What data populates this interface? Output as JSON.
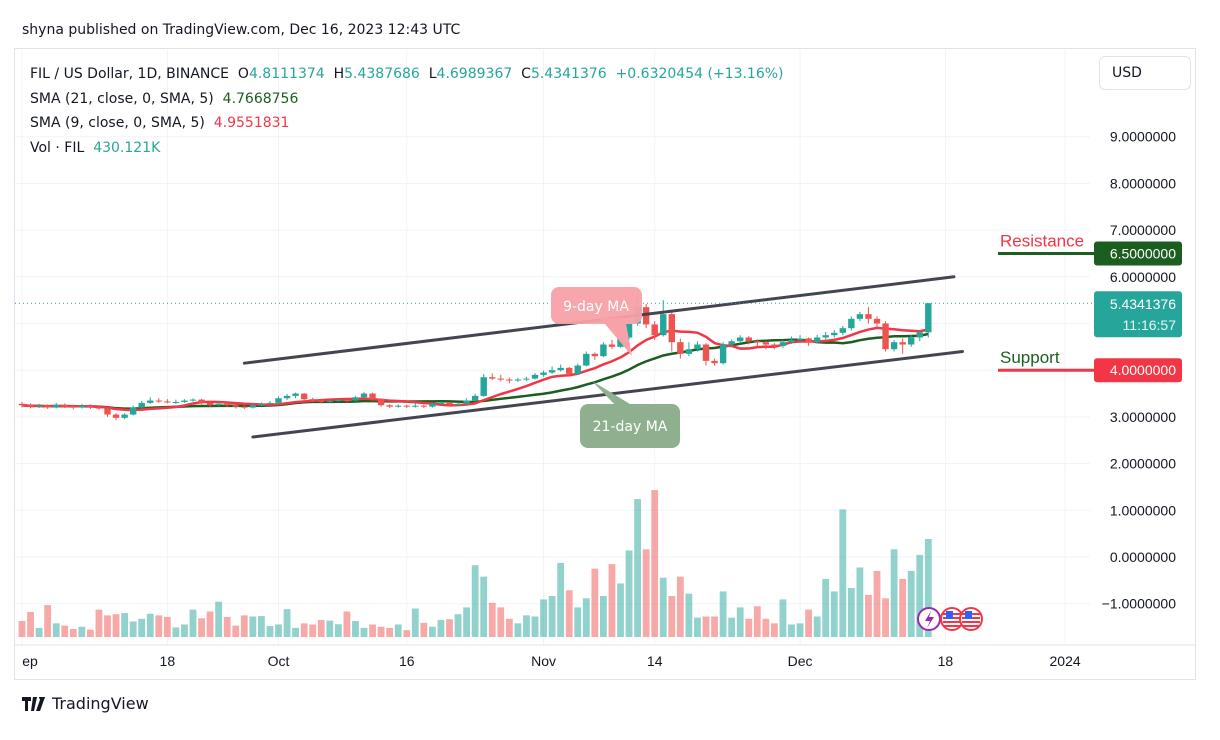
{
  "header": {
    "published": "shyna published on TradingView.com, Dec 16, 2023 12:43 UTC"
  },
  "legend": {
    "symbol": "FIL / US Dollar, 1D, BINANCE",
    "o_label": "O",
    "o": "4.8111374",
    "h_label": "H",
    "h": "5.4387686",
    "l_label": "L",
    "l": "4.6989367",
    "c_label": "C",
    "c": "5.4341376",
    "change": "+0.6320454 (+13.16%)",
    "sma21_label": "SMA (21, close, 0, SMA, 5)",
    "sma21": "4.7668756",
    "sma9_label": "SMA (9, close, 0, SMA, 5)",
    "sma9": "4.9551831",
    "vol_label": "Vol · FIL",
    "vol": "430.121K"
  },
  "currency_button": "USD",
  "brand": "TradingView",
  "colors": {
    "up": "#26a69a",
    "down": "#ef5350",
    "sma21": "#1b5e20",
    "sma9": "#f23645",
    "resistance": "#1b5e20",
    "support": "#f23645",
    "trendline": "#434651"
  },
  "chart_data": {
    "type": "candlestick",
    "price_axis": {
      "ticks": [
        9,
        8,
        7,
        6,
        4,
        3,
        2,
        1,
        0,
        -1
      ],
      "labels": [
        "9.0000000",
        "8.0000000",
        "7.0000000",
        "6.0000000",
        "4.0000000",
        "3.0000000",
        "2.0000000",
        "1.0000000",
        "0.0000000",
        "−1.0000000"
      ]
    },
    "time_axis": {
      "labels": [
        "ep",
        "18",
        "Oct",
        "16",
        "Nov",
        "14",
        "Dec",
        "18",
        "2024"
      ],
      "dates": [
        "2023-09-01",
        "2023-09-18",
        "2023-10-01",
        "2023-10-16",
        "2023-11-01",
        "2023-11-14",
        "2023-12-01",
        "2023-12-18",
        "2024-01-01"
      ]
    },
    "last_price": {
      "label": "5.4341376",
      "countdown": "11:16:57",
      "value": 5.4341376
    },
    "resistance": {
      "label": "Resistance",
      "value": 6.5,
      "tag": "6.5000000"
    },
    "support": {
      "label": "Support",
      "value": 4.0,
      "tag": "4.0000000"
    },
    "annotations": [
      {
        "text": "9-day MA",
        "color": "#f7a1a8"
      },
      {
        "text": "21-day MA",
        "color": "#8fb08f"
      }
    ],
    "trendlines": [
      {
        "from": [
          "2023-09-27",
          4.15
        ],
        "to": [
          "2023-12-19",
          6.0
        ]
      },
      {
        "from": [
          "2023-09-28",
          2.57
        ],
        "to": [
          "2023-12-20",
          4.4
        ]
      }
    ],
    "sma_periods": [
      9,
      21
    ],
    "candles_columns": [
      "date",
      "open",
      "high",
      "low",
      "close",
      "volume_k"
    ],
    "candles": [
      [
        "2023-09-01",
        3.28,
        3.32,
        3.2,
        3.25,
        70
      ],
      [
        "2023-09-02",
        3.25,
        3.29,
        3.18,
        3.22,
        110
      ],
      [
        "2023-09-03",
        3.22,
        3.28,
        3.19,
        3.24,
        40
      ],
      [
        "2023-09-04",
        3.24,
        3.27,
        3.17,
        3.2,
        140
      ],
      [
        "2023-09-05",
        3.2,
        3.3,
        3.18,
        3.26,
        60
      ],
      [
        "2023-09-06",
        3.26,
        3.29,
        3.19,
        3.22,
        50
      ],
      [
        "2023-09-07",
        3.22,
        3.26,
        3.16,
        3.2,
        35
      ],
      [
        "2023-09-08",
        3.2,
        3.28,
        3.18,
        3.24,
        45
      ],
      [
        "2023-09-09",
        3.24,
        3.27,
        3.17,
        3.2,
        32
      ],
      [
        "2023-09-10",
        3.2,
        3.24,
        3.15,
        3.18,
        120
      ],
      [
        "2023-09-11",
        3.18,
        3.2,
        3.0,
        3.05,
        95
      ],
      [
        "2023-09-12",
        3.05,
        3.08,
        2.93,
        2.98,
        100
      ],
      [
        "2023-09-13",
        2.98,
        3.08,
        2.95,
        3.05,
        105
      ],
      [
        "2023-09-14",
        3.05,
        3.24,
        3.03,
        3.2,
        68
      ],
      [
        "2023-09-15",
        3.2,
        3.34,
        3.18,
        3.3,
        80
      ],
      [
        "2023-09-16",
        3.3,
        3.42,
        3.28,
        3.35,
        102
      ],
      [
        "2023-09-17",
        3.35,
        3.4,
        3.3,
        3.33,
        95
      ],
      [
        "2023-09-18",
        3.33,
        3.38,
        3.29,
        3.32,
        88
      ],
      [
        "2023-09-19",
        3.32,
        3.37,
        3.28,
        3.32,
        42
      ],
      [
        "2023-09-20",
        3.32,
        3.38,
        3.3,
        3.35,
        55
      ],
      [
        "2023-09-21",
        3.35,
        3.4,
        3.33,
        3.37,
        120
      ],
      [
        "2023-09-22",
        3.37,
        3.39,
        3.27,
        3.3,
        82
      ],
      [
        "2023-09-23",
        3.3,
        3.33,
        3.22,
        3.25,
        112
      ],
      [
        "2023-09-24",
        3.25,
        3.31,
        3.23,
        3.28,
        155
      ],
      [
        "2023-09-25",
        3.28,
        3.3,
        3.21,
        3.25,
        88
      ],
      [
        "2023-09-26",
        3.25,
        3.28,
        3.18,
        3.22,
        50
      ],
      [
        "2023-09-27",
        3.22,
        3.25,
        3.17,
        3.2,
        95
      ],
      [
        "2023-09-28",
        3.2,
        3.29,
        3.18,
        3.25,
        90
      ],
      [
        "2023-09-29",
        3.25,
        3.31,
        3.23,
        3.28,
        92
      ],
      [
        "2023-09-30",
        3.28,
        3.34,
        3.26,
        3.3,
        48
      ],
      [
        "2023-10-01",
        3.3,
        3.44,
        3.28,
        3.4,
        55
      ],
      [
        "2023-10-02",
        3.4,
        3.49,
        3.36,
        3.45,
        122
      ],
      [
        "2023-10-03",
        3.45,
        3.52,
        3.4,
        3.5,
        40
      ],
      [
        "2023-10-04",
        3.5,
        3.51,
        3.35,
        3.38,
        60
      ],
      [
        "2023-10-05",
        3.38,
        3.41,
        3.32,
        3.35,
        55
      ],
      [
        "2023-10-06",
        3.35,
        3.38,
        3.29,
        3.32,
        75
      ],
      [
        "2023-10-07",
        3.32,
        3.37,
        3.3,
        3.34,
        72
      ],
      [
        "2023-10-08",
        3.34,
        3.39,
        3.32,
        3.36,
        56
      ],
      [
        "2023-10-09",
        3.36,
        3.38,
        3.31,
        3.35,
        112
      ],
      [
        "2023-10-10",
        3.35,
        3.45,
        3.33,
        3.42,
        70
      ],
      [
        "2023-10-11",
        3.42,
        3.53,
        3.4,
        3.5,
        40
      ],
      [
        "2023-10-12",
        3.5,
        3.52,
        3.35,
        3.38,
        55
      ],
      [
        "2023-10-13",
        3.38,
        3.4,
        3.22,
        3.25,
        45
      ],
      [
        "2023-10-14",
        3.25,
        3.27,
        3.19,
        3.22,
        40
      ],
      [
        "2023-10-15",
        3.22,
        3.27,
        3.2,
        3.24,
        55
      ],
      [
        "2023-10-16",
        3.24,
        3.26,
        3.19,
        3.22,
        30
      ],
      [
        "2023-10-17",
        3.22,
        3.3,
        3.2,
        3.24,
        125
      ],
      [
        "2023-10-18",
        3.24,
        3.26,
        3.19,
        3.22,
        62
      ],
      [
        "2023-10-19",
        3.22,
        3.31,
        3.2,
        3.28,
        45
      ],
      [
        "2023-10-20",
        3.28,
        3.33,
        3.25,
        3.3,
        75
      ],
      [
        "2023-10-21",
        3.3,
        3.32,
        3.23,
        3.26,
        78
      ],
      [
        "2023-10-22",
        3.26,
        3.31,
        3.24,
        3.28,
        100
      ],
      [
        "2023-10-23",
        3.28,
        3.4,
        3.26,
        3.35,
        130
      ],
      [
        "2023-10-24",
        3.35,
        3.5,
        3.33,
        3.45,
        315
      ],
      [
        "2023-10-25",
        3.45,
        3.92,
        3.43,
        3.85,
        265
      ],
      [
        "2023-10-26",
        3.85,
        3.93,
        3.79,
        3.82,
        150
      ],
      [
        "2023-10-27",
        3.82,
        3.9,
        3.76,
        3.8,
        130
      ],
      [
        "2023-10-28",
        3.8,
        3.84,
        3.72,
        3.78,
        80
      ],
      [
        "2023-10-29",
        3.78,
        3.84,
        3.75,
        3.8,
        60
      ],
      [
        "2023-10-30",
        3.8,
        3.86,
        3.77,
        3.82,
        95
      ],
      [
        "2023-10-31",
        3.82,
        3.94,
        3.8,
        3.9,
        90
      ],
      [
        "2023-11-01",
        3.9,
        3.99,
        3.86,
        3.95,
        165
      ],
      [
        "2023-11-02",
        3.95,
        4.08,
        3.92,
        4.0,
        180
      ],
      [
        "2023-11-03",
        4.0,
        4.12,
        3.97,
        4.05,
        325
      ],
      [
        "2023-11-04",
        4.05,
        4.07,
        3.88,
        3.92,
        205
      ],
      [
        "2023-11-05",
        3.92,
        4.14,
        3.9,
        4.1,
        130
      ],
      [
        "2023-11-06",
        4.1,
        4.4,
        4.08,
        4.35,
        170
      ],
      [
        "2023-11-07",
        4.35,
        4.38,
        4.22,
        4.3,
        300
      ],
      [
        "2023-11-08",
        4.3,
        4.6,
        4.28,
        4.55,
        180
      ],
      [
        "2023-11-09",
        4.55,
        4.65,
        4.45,
        4.5,
        320
      ],
      [
        "2023-11-10",
        4.5,
        4.8,
        4.48,
        4.7,
        235
      ],
      [
        "2023-11-11",
        4.7,
        5.08,
        4.66,
        5.0,
        380
      ],
      [
        "2023-11-12",
        5.0,
        5.62,
        4.95,
        5.35,
        605
      ],
      [
        "2023-11-13",
        5.35,
        5.42,
        4.9,
        4.98,
        385
      ],
      [
        "2023-11-14",
        4.98,
        5.05,
        4.65,
        4.75,
        645
      ],
      [
        "2023-11-15",
        4.75,
        5.5,
        4.72,
        5.2,
        260
      ],
      [
        "2023-11-16",
        5.2,
        5.25,
        4.4,
        4.6,
        180
      ],
      [
        "2023-11-17",
        4.6,
        4.68,
        4.25,
        4.35,
        265
      ],
      [
        "2023-11-18",
        4.35,
        4.6,
        4.3,
        4.45,
        190
      ],
      [
        "2023-11-19",
        4.45,
        4.62,
        4.4,
        4.55,
        85
      ],
      [
        "2023-11-20",
        4.55,
        4.58,
        4.1,
        4.2,
        90
      ],
      [
        "2023-11-21",
        4.2,
        4.25,
        4.1,
        4.15,
        90
      ],
      [
        "2023-11-22",
        4.15,
        4.6,
        4.12,
        4.55,
        200
      ],
      [
        "2023-11-23",
        4.55,
        4.66,
        4.5,
        4.62,
        85
      ],
      [
        "2023-11-24",
        4.62,
        4.75,
        4.58,
        4.7,
        130
      ],
      [
        "2023-11-25",
        4.7,
        4.73,
        4.55,
        4.62,
        80
      ],
      [
        "2023-11-26",
        4.62,
        4.66,
        4.48,
        4.6,
        135
      ],
      [
        "2023-11-27",
        4.6,
        4.63,
        4.45,
        4.55,
        80
      ],
      [
        "2023-11-28",
        4.55,
        4.58,
        4.45,
        4.52,
        60
      ],
      [
        "2023-11-29",
        4.52,
        4.65,
        4.48,
        4.6,
        165
      ],
      [
        "2023-11-30",
        4.6,
        4.72,
        4.56,
        4.65,
        55
      ],
      [
        "2023-12-01",
        4.65,
        4.75,
        4.58,
        4.68,
        60
      ],
      [
        "2023-12-02",
        4.68,
        4.7,
        4.52,
        4.6,
        120
      ],
      [
        "2023-12-03",
        4.6,
        4.76,
        4.57,
        4.7,
        90
      ],
      [
        "2023-12-04",
        4.7,
        4.82,
        4.66,
        4.75,
        255
      ],
      [
        "2023-12-05",
        4.75,
        4.86,
        4.7,
        4.8,
        200
      ],
      [
        "2023-12-06",
        4.8,
        4.95,
        4.75,
        4.9,
        560
      ],
      [
        "2023-12-07",
        4.9,
        5.15,
        4.85,
        5.1,
        215
      ],
      [
        "2023-12-08",
        5.1,
        5.25,
        5.05,
        5.2,
        305
      ],
      [
        "2023-12-09",
        5.2,
        5.35,
        5.0,
        5.1,
        185
      ],
      [
        "2023-12-10",
        5.1,
        5.15,
        4.9,
        5.0,
        290
      ],
      [
        "2023-12-11",
        5.0,
        5.05,
        4.4,
        4.45,
        170
      ],
      [
        "2023-12-12",
        4.45,
        4.65,
        4.4,
        4.6,
        385
      ],
      [
        "2023-12-13",
        4.6,
        4.68,
        4.35,
        4.55,
        255
      ],
      [
        "2023-12-14",
        4.55,
        4.76,
        4.5,
        4.7,
        290
      ],
      [
        "2023-12-15",
        4.7,
        4.86,
        4.62,
        4.81,
        360
      ],
      [
        "2023-12-16",
        4.8111374,
        5.4387686,
        4.6989367,
        5.4341376,
        430.121
      ]
    ]
  }
}
